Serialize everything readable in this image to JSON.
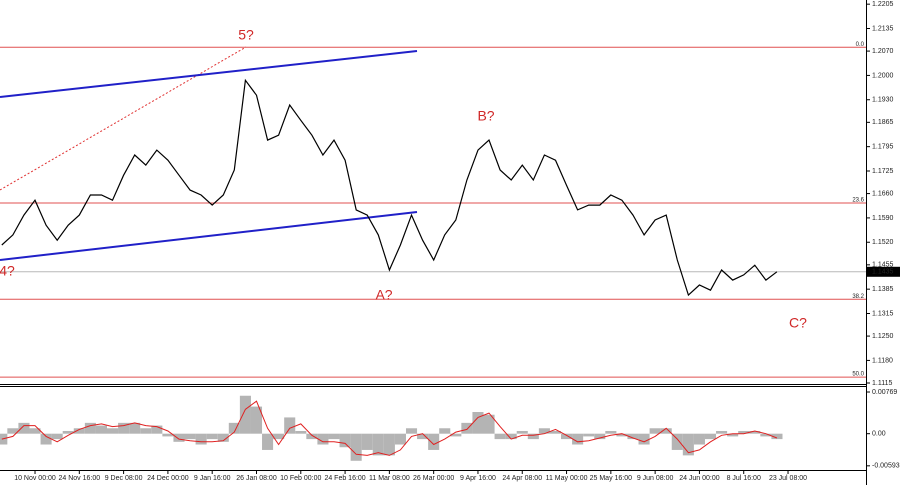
{
  "chart_data": [
    {
      "type": "line",
      "categories": [
        null,
        null,
        null,
        "10 Nov 00:00",
        null,
        null,
        null,
        "24 Nov 16:00",
        null,
        null,
        null,
        "9 Dec 08:00",
        null,
        null,
        null,
        "24 Dec 00:00",
        null,
        null,
        null,
        "9 Jan 16:00",
        null,
        null,
        null,
        "26 Jan 08:00",
        null,
        null,
        null,
        "10 Feb 00:00",
        null,
        null,
        null,
        "24 Feb 16:00",
        null,
        null,
        null,
        "11 Mar 08:00",
        null,
        null,
        null,
        "26 Mar 00:00",
        null,
        null,
        null,
        "9 Apr 16:00",
        null,
        null,
        null,
        "24 Apr 08:00",
        null,
        null,
        null,
        "11 May 00:00",
        null,
        null,
        null,
        "25 May 16:00",
        null,
        null,
        null,
        "9 Jun 08:00",
        null,
        null,
        null,
        "24 Jun 00:00",
        null,
        null,
        null,
        "8 Jul 16:00",
        null,
        null,
        null,
        "23 Jul 08:00"
      ],
      "series": [
        {
          "color": "#000000",
          "values": [
            1.1512,
            1.1541,
            1.1598,
            1.1641,
            1.1569,
            1.1526,
            1.1569,
            1.1598,
            1.1656,
            1.1656,
            1.1641,
            1.1713,
            1.1771,
            1.1742,
            1.1785,
            1.1756,
            1.1713,
            1.167,
            1.1656,
            1.1627,
            1.1656,
            1.1728,
            1.1986,
            1.1943,
            1.1814,
            1.1828,
            1.1915,
            1.1871,
            1.1828,
            1.1771,
            1.1814,
            1.1756,
            1.1613,
            1.1598,
            1.1541,
            1.144,
            1.1512,
            1.1598,
            1.1526,
            1.1469,
            1.1541,
            1.1584,
            1.1699,
            1.1785,
            1.1814,
            1.1728,
            1.1699,
            1.1742,
            1.1699,
            1.1771,
            1.1756,
            1.1684,
            1.1613,
            1.1627,
            1.1627,
            1.1656,
            1.1641,
            1.1598,
            1.1541,
            1.1584,
            1.1598,
            1.1469,
            1.1368,
            1.1397,
            1.1382,
            1.144,
            1.1411,
            1.1426,
            1.1454,
            1.1411,
            1.1435,
            null
          ]
        }
      ],
      "ylim": [
        1.1115,
        1.2217
      ],
      "yticks": [
        1.2205,
        1.2135,
        {
          "value": 1.207,
          "label": "1.2070"
        },
        {
          "value": 1.2,
          "label": "1.2000"
        },
        {
          "value": 1.193,
          "label": "1.1930"
        },
        1.1865,
        1.1795,
        1.1725,
        {
          "value": 1.166,
          "label": "1.1660"
        },
        {
          "value": 1.159,
          "label": "1.1590"
        },
        {
          "value": 1.152,
          "label": "1.1520"
        },
        1.1455,
        1.1385,
        1.1315,
        {
          "value": 1.125,
          "label": "1.1250"
        },
        {
          "value": 1.118,
          "label": "1.1180"
        },
        1.1115
      ],
      "levels": [
        {
          "label": "0.0",
          "value": 1.2081
        },
        {
          "label": "23.6",
          "value": 1.1633
        },
        {
          "label": "38.2",
          "value": 1.1356
        },
        {
          "label": "50.0",
          "value": 1.1132
        }
      ],
      "level_color": "#e05050",
      "last_price": 1.1435,
      "annotations": [
        "5?",
        "4?",
        "A?",
        "B?",
        "C?"
      ]
    },
    {
      "type": "bar",
      "series": [
        {
          "color": "#b4b4b4",
          "values": [
            -0.002,
            0.001,
            0.002,
            0.001,
            -0.002,
            -0.001,
            0.0005,
            0.001,
            0.002,
            0.0015,
            0.001,
            0.002,
            0.002,
            0.001,
            0.0015,
            -0.0005,
            -0.0015,
            -0.001,
            -0.002,
            -0.001,
            -0.0015,
            0.002,
            0.007,
            0.005,
            -0.003,
            -0.001,
            0.003,
            0.0005,
            -0.001,
            -0.002,
            -0.001,
            -0.0025,
            -0.005,
            -0.003,
            -0.004,
            -0.004,
            -0.002,
            0.001,
            -0.001,
            -0.003,
            0.001,
            -0.0005,
            0.002,
            0.004,
            0.0035,
            -0.001,
            -0.001,
            0.0005,
            -0.001,
            0.001,
            0.0005,
            -0.001,
            -0.002,
            -0.0005,
            -0.001,
            0.0005,
            -0.0005,
            -0.001,
            -0.002,
            0.001,
            0.001,
            -0.003,
            -0.004,
            -0.002,
            -0.001,
            0.0005,
            -0.0005,
            0.0005,
            0.0005,
            -0.0005,
            -0.001,
            null
          ]
        },
        {
          "type": "line",
          "color": "#e02020",
          "values": [
            -0.001,
            -0.0005,
            0.0015,
            0.0015,
            -0.0005,
            -0.0015,
            -0.0003,
            0.0008,
            0.0015,
            0.0018,
            0.0013,
            0.0015,
            0.002,
            0.0015,
            0.0013,
            0.0005,
            -0.001,
            -0.0013,
            -0.0015,
            -0.0015,
            -0.0013,
            0.0003,
            0.0045,
            0.006,
            0.001,
            -0.002,
            0.001,
            0.0018,
            -0.0003,
            -0.0015,
            -0.0015,
            -0.0018,
            -0.0038,
            -0.004,
            -0.0035,
            -0.004,
            -0.003,
            -0.0005,
            0,
            -0.002,
            -0.001,
            0.0003,
            0.0008,
            0.003,
            0.0038,
            0.0013,
            -0.001,
            -0.0003,
            -0.0003,
            0,
            0.0008,
            -0.0003,
            -0.0015,
            -0.0013,
            -0.0008,
            -0.0003,
            0,
            -0.0008,
            -0.0015,
            -0.0005,
            0.001,
            -0.001,
            -0.0035,
            -0.003,
            -0.0015,
            -0.0003,
            0,
            0,
            0.0005,
            0,
            -0.0008,
            null
          ]
        }
      ],
      "ylim": [
        -0.0067,
        0.0088
      ],
      "yticks": [
        0.00769,
        {
          "value": 0,
          "label": "0.00"
        },
        -0.00593
      ]
    }
  ]
}
